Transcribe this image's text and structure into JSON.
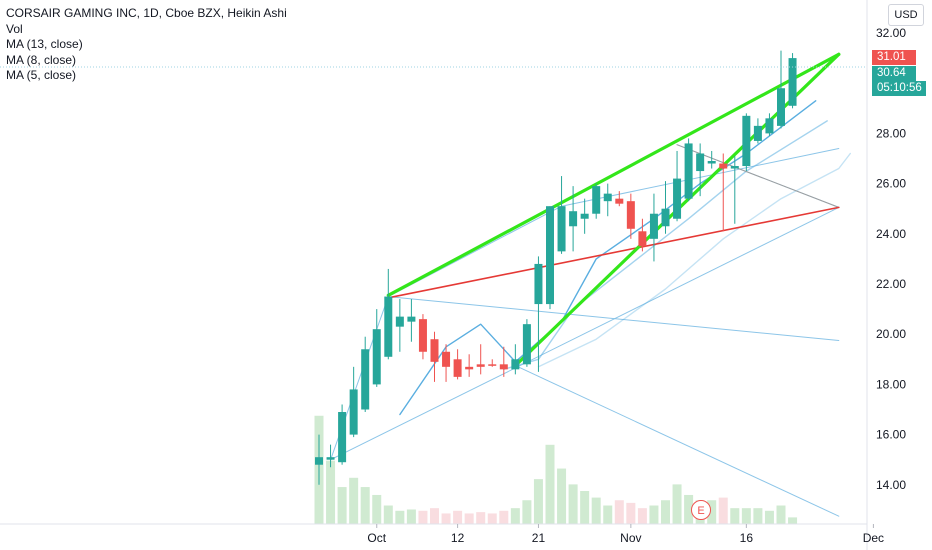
{
  "legend": {
    "symbol": "CORSAIR GAMING INC, 1D, Cboe BZX, Heikin Ashi",
    "vol": "Vol",
    "ma13": "MA (13, close)",
    "ma8": "MA (8, close)",
    "ma5": "MA (5, close)"
  },
  "currency": "USD",
  "price_tags": {
    "last": "31.01",
    "close": "30.64",
    "countdown": "05:10:56"
  },
  "earnings_marker": "E",
  "colors": {
    "up": "#26a69a",
    "down": "#ef5350",
    "volume_up": "#c8e6c9",
    "volume_down": "#f8d7da",
    "wedge": "#33e61a",
    "red_line": "#e53935",
    "blue_line": "#7fbfe6",
    "ma": "#5aaee0"
  },
  "chart_data": {
    "type": "candlestick",
    "title": "CORSAIR GAMING INC, 1D, Cboe BZX, Heikin Ashi",
    "x_ticks": [
      "Oct",
      "12",
      "21",
      "Nov",
      "16",
      "Dec"
    ],
    "y_ticks": [
      "32.00",
      "28.00",
      "26.00",
      "24.00",
      "22.00",
      "20.00",
      "18.00",
      "16.00",
      "14.00"
    ],
    "ylim": [
      12.5,
      33.3
    ],
    "candles": [
      {
        "d": "Sep 24",
        "o": 14.8,
        "h": 16.0,
        "l": 14.0,
        "c": 15.1
      },
      {
        "d": "Sep 25",
        "o": 15.0,
        "h": 15.6,
        "l": 14.7,
        "c": 15.1
      },
      {
        "d": "Sep 28",
        "o": 14.9,
        "h": 17.2,
        "l": 14.8,
        "c": 16.9
      },
      {
        "d": "Sep 29",
        "o": 16.0,
        "h": 18.7,
        "l": 15.9,
        "c": 17.8
      },
      {
        "d": "Sep 30",
        "o": 17.0,
        "h": 19.9,
        "l": 16.9,
        "c": 19.4
      },
      {
        "d": "Oct 1",
        "o": 18.0,
        "h": 21.0,
        "l": 17.9,
        "c": 20.2
      },
      {
        "d": "Oct 2",
        "o": 19.1,
        "h": 22.6,
        "l": 19.0,
        "c": 21.5
      },
      {
        "d": "Oct 5",
        "o": 20.3,
        "h": 21.4,
        "l": 19.3,
        "c": 20.7
      },
      {
        "d": "Oct 6",
        "o": 20.5,
        "h": 21.4,
        "l": 19.7,
        "c": 20.7
      },
      {
        "d": "Oct 7",
        "o": 20.6,
        "h": 20.8,
        "l": 19.0,
        "c": 19.3
      },
      {
        "d": "Oct 8",
        "o": 19.8,
        "h": 20.1,
        "l": 18.1,
        "c": 18.9
      },
      {
        "d": "Oct 9",
        "o": 19.3,
        "h": 19.6,
        "l": 18.1,
        "c": 18.7
      },
      {
        "d": "Oct 12",
        "o": 19.0,
        "h": 19.4,
        "l": 18.2,
        "c": 18.3
      },
      {
        "d": "Oct 13",
        "o": 18.7,
        "h": 19.2,
        "l": 18.3,
        "c": 18.6
      },
      {
        "d": "Oct 14",
        "o": 18.8,
        "h": 19.6,
        "l": 18.4,
        "c": 18.7
      },
      {
        "d": "Oct 15",
        "o": 18.8,
        "h": 19.0,
        "l": 18.7,
        "c": 18.75
      },
      {
        "d": "Oct 16",
        "o": 18.8,
        "h": 19.5,
        "l": 18.3,
        "c": 18.6
      },
      {
        "d": "Oct 19",
        "o": 18.6,
        "h": 19.6,
        "l": 18.4,
        "c": 19.0
      },
      {
        "d": "Oct 20",
        "o": 18.8,
        "h": 20.6,
        "l": 18.7,
        "c": 20.4
      },
      {
        "d": "Oct 21",
        "o": 21.2,
        "h": 23.1,
        "l": 18.5,
        "c": 22.8
      },
      {
        "d": "Oct 22",
        "o": 21.2,
        "h": 25.1,
        "l": 21.0,
        "c": 25.1
      },
      {
        "d": "Oct 23",
        "o": 23.3,
        "h": 26.3,
        "l": 23.2,
        "c": 25.1
      },
      {
        "d": "Oct 26",
        "o": 24.3,
        "h": 25.9,
        "l": 23.3,
        "c": 24.9
      },
      {
        "d": "Oct 27",
        "o": 24.6,
        "h": 25.4,
        "l": 24.0,
        "c": 24.8
      },
      {
        "d": "Oct 28",
        "o": 24.8,
        "h": 26.0,
        "l": 24.6,
        "c": 25.9
      },
      {
        "d": "Oct 29",
        "o": 25.3,
        "h": 26.0,
        "l": 24.7,
        "c": 25.6
      },
      {
        "d": "Oct 30",
        "o": 25.4,
        "h": 25.7,
        "l": 25.1,
        "c": 25.2
      },
      {
        "d": "Nov 2",
        "o": 25.3,
        "h": 25.6,
        "l": 23.8,
        "c": 24.2
      },
      {
        "d": "Nov 3",
        "o": 24.1,
        "h": 24.6,
        "l": 23.3,
        "c": 23.5
      },
      {
        "d": "Nov 4",
        "o": 23.8,
        "h": 25.6,
        "l": 22.9,
        "c": 24.8
      },
      {
        "d": "Nov 5",
        "o": 24.3,
        "h": 26.1,
        "l": 24.0,
        "c": 25.0
      },
      {
        "d": "Nov 6",
        "o": 24.6,
        "h": 27.3,
        "l": 24.5,
        "c": 26.2
      },
      {
        "d": "Nov 9",
        "o": 25.4,
        "h": 27.8,
        "l": 25.3,
        "c": 27.6
      },
      {
        "d": "Nov 10",
        "o": 26.5,
        "h": 27.6,
        "l": 25.5,
        "c": 27.2
      },
      {
        "d": "Nov 11",
        "o": 26.8,
        "h": 27.3,
        "l": 26.6,
        "c": 26.9
      },
      {
        "d": "Nov 12",
        "o": 26.8,
        "h": 27.2,
        "l": 24.1,
        "c": 26.6
      },
      {
        "d": "Nov 13",
        "o": 26.6,
        "h": 27.1,
        "l": 24.4,
        "c": 26.7
      },
      {
        "d": "Nov 16",
        "o": 26.7,
        "h": 28.8,
        "l": 26.5,
        "c": 28.7
      },
      {
        "d": "Nov 17",
        "o": 27.7,
        "h": 28.6,
        "l": 27.6,
        "c": 28.3
      },
      {
        "d": "Nov 18",
        "o": 28.0,
        "h": 28.8,
        "l": 27.9,
        "c": 28.6
      },
      {
        "d": "Nov 19",
        "o": 28.3,
        "h": 31.3,
        "l": 28.2,
        "c": 29.8
      },
      {
        "d": "Nov 20",
        "o": 29.1,
        "h": 31.2,
        "l": 29.0,
        "c": 31.0
      }
    ],
    "volume_relative": [
      0.82,
      0.48,
      0.28,
      0.35,
      0.28,
      0.22,
      0.14,
      0.1,
      0.11,
      0.1,
      0.12,
      0.08,
      0.1,
      0.08,
      0.09,
      0.08,
      0.1,
      0.12,
      0.18,
      0.34,
      0.6,
      0.42,
      0.3,
      0.25,
      0.2,
      0.14,
      0.18,
      0.16,
      0.12,
      0.14,
      0.18,
      0.3,
      0.22,
      0.18,
      0.18,
      0.2,
      0.12,
      0.12,
      0.12,
      0.1,
      0.14,
      0.05
    ],
    "drawings": {
      "wedge_upper": [
        [
          "Oct 2",
          21.55
        ],
        [
          "Nov 26",
          31.15
        ]
      ],
      "wedge_lower": [
        [
          "Oct 19",
          18.75
        ],
        [
          "Nov 26",
          31.15
        ]
      ],
      "red_line": [
        [
          "Oct 2",
          21.45
        ],
        [
          "Nov 26",
          25.05
        ]
      ],
      "fan_lines": [
        [
          [
            "Sep 25",
            15.0
          ],
          [
            "Oct 2",
            21.5
          ],
          [
            "Oct 23",
            25.1
          ],
          [
            "Nov 26",
            27.4
          ]
        ],
        [
          [
            "Sep 25",
            15.0
          ],
          [
            "Nov 26",
            25.05
          ]
        ],
        [
          [
            "Oct 2",
            21.5
          ],
          [
            "Nov 26",
            19.75
          ]
        ],
        [
          [
            "Oct 19",
            18.75
          ],
          [
            "Nov 26",
            12.75
          ]
        ],
        [
          [
            "Nov 6",
            27.55
          ],
          [
            "Nov 26",
            25.05
          ]
        ]
      ],
      "moving_averages": [
        [
          [
            "Oct 5",
            16.8
          ],
          [
            "Oct 9",
            19.5
          ],
          [
            "Oct 14",
            20.4
          ],
          [
            "Oct 19",
            18.9
          ],
          [
            "Oct 23",
            20.5
          ],
          [
            "Oct 28",
            23.0
          ],
          [
            "Nov 4",
            24.6
          ],
          [
            "Nov 10",
            26.0
          ],
          [
            "Nov 16",
            27.2
          ],
          [
            "Nov 24",
            29.3
          ]
        ],
        [
          [
            "Oct 16",
            18.6
          ],
          [
            "Oct 21",
            19.0
          ],
          [
            "Oct 26",
            21.0
          ],
          [
            "Nov 2",
            22.8
          ],
          [
            "Nov 9",
            24.6
          ],
          [
            "Nov 16",
            26.5
          ],
          [
            "Nov 25",
            28.5
          ]
        ],
        [
          [
            "Oct 21",
            18.7
          ],
          [
            "Oct 28",
            19.8
          ],
          [
            "Nov 5",
            21.8
          ],
          [
            "Nov 12",
            23.8
          ],
          [
            "Nov 19",
            25.4
          ],
          [
            "Nov 26",
            26.6
          ],
          [
            "Nov 27",
            27.2
          ]
        ]
      ]
    }
  }
}
